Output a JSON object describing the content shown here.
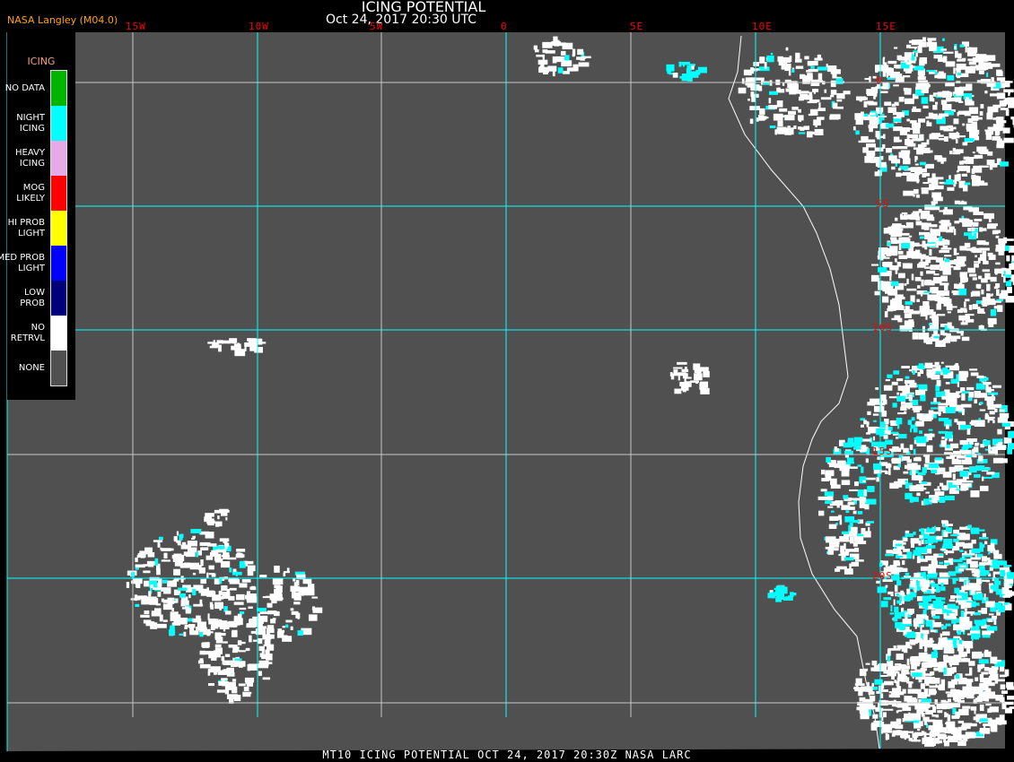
{
  "header": {
    "title": "ICING POTENTIAL",
    "subtitle": "Oct 24, 2017 20:30 UTC",
    "credit": "NASA Langley (M04.0)"
  },
  "longitude_labels": [
    "15W",
    "10W",
    "5W",
    "0",
    "5E",
    "10E",
    "15E"
  ],
  "latitude_labels": [
    "0",
    "5S",
    "10S",
    "15S",
    "20S"
  ],
  "legend": {
    "title": "ICING",
    "items": [
      {
        "label": "NO DATA",
        "color": "#00b400"
      },
      {
        "label": "NIGHT\nICING",
        "color": "#00ffff"
      },
      {
        "label": "HEAVY\nICING",
        "color": "#e6aae6"
      },
      {
        "label": "MOG\nLIKELY",
        "color": "#ff0000"
      },
      {
        "label": "HI PROB\nLIGHT",
        "color": "#ffff00"
      },
      {
        "label": "MED PROB\nLIGHT",
        "color": "#0000ff"
      },
      {
        "label": "LOW\nPROB",
        "color": "#000078"
      },
      {
        "label": "NO\nRETRVL",
        "color": "#ffffff"
      },
      {
        "label": "NONE",
        "color": "#505050"
      }
    ]
  },
  "colors": {
    "background": "#505050",
    "grid_cyan": "#00ffff",
    "grid_white": "#c8c8c8",
    "cloud": "#ffffff",
    "night_icing": "#00ffff",
    "label_red": "#ff0000"
  },
  "footer": "MT10  ICING POTENTIAL  OCT 24, 2017 20:30Z  NASA LARC"
}
